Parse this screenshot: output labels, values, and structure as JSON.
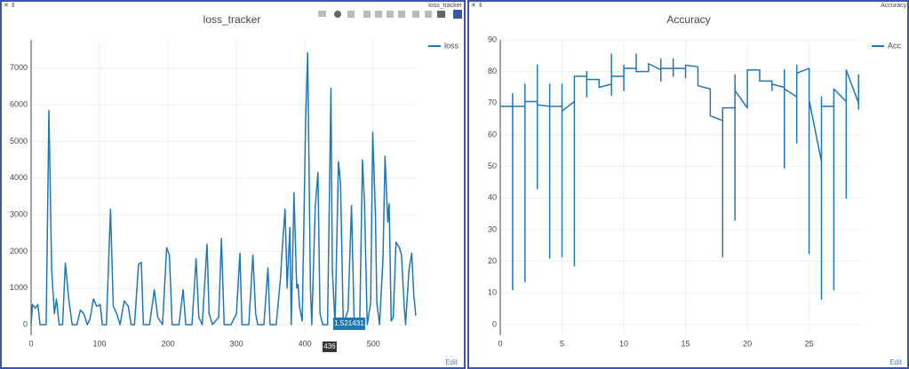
{
  "chart_data": [
    {
      "type": "line",
      "title": "loss_tracker",
      "x": [
        0,
        2,
        6,
        10,
        13,
        22,
        26,
        30,
        34,
        37,
        41,
        46,
        50,
        55,
        60,
        67,
        72,
        77,
        82,
        86,
        91,
        96,
        101,
        104,
        110,
        116,
        120,
        125,
        130,
        136,
        142,
        146,
        151,
        157,
        161,
        164,
        173,
        180,
        185,
        192,
        198,
        202,
        206,
        216,
        222,
        226,
        235,
        241,
        245,
        250,
        257,
        260,
        265,
        274,
        278,
        282,
        292,
        300,
        305,
        308,
        318,
        324,
        328,
        331,
        340,
        346,
        349,
        358,
        364,
        367,
        371,
        374,
        378,
        380,
        384,
        388,
        390,
        392,
        396,
        401,
        404,
        408,
        410,
        415,
        419,
        422,
        426,
        433,
        438,
        440,
        444,
        449,
        452,
        456,
        463,
        468,
        472,
        480,
        484,
        487,
        491,
        496,
        499,
        503,
        505,
        509,
        514,
        517,
        521,
        523,
        526,
        529,
        533,
        538,
        541,
        545,
        547,
        552,
        556,
        559,
        562
      ],
      "series": [
        {
          "name": "loss",
          "color": "#1f77b4",
          "values": [
            0,
            550,
            450,
            550,
            0,
            0,
            5850,
            1500,
            300,
            700,
            0,
            0,
            1680,
            700,
            0,
            0,
            400,
            300,
            0,
            150,
            700,
            500,
            550,
            0,
            0,
            3150,
            500,
            300,
            0,
            650,
            500,
            0,
            0,
            1650,
            1700,
            0,
            0,
            950,
            200,
            0,
            2100,
            1900,
            0,
            0,
            950,
            0,
            0,
            1800,
            200,
            0,
            2200,
            300,
            0,
            200,
            2350,
            0,
            0,
            300,
            1950,
            0,
            0,
            1900,
            300,
            0,
            0,
            1550,
            0,
            0,
            1200,
            2100,
            3150,
            1000,
            2650,
            0,
            3600,
            1000,
            1100,
            500,
            100,
            5600,
            7420,
            1000,
            0,
            3200,
            4150,
            300,
            0,
            0,
            6450,
            1500,
            0,
            4450,
            3850,
            0,
            400,
            3250,
            0,
            0,
            4500,
            3300,
            0,
            600,
            5250,
            3000,
            600,
            0,
            1800,
            4600,
            2800,
            3300,
            100,
            200,
            2250,
            2100,
            1900,
            500,
            0,
            1500,
            1950,
            800,
            250
          ]
        }
      ],
      "xlim": [
        0,
        562
      ],
      "xticks": [
        0,
        100,
        200,
        300,
        400,
        500
      ],
      "ylim": [
        -290,
        7770
      ],
      "yticks": [
        0,
        1000,
        2000,
        3000,
        4000,
        5000,
        6000,
        7000
      ],
      "grid": true,
      "legend": "top-right",
      "hover": {
        "value_label": "1.521431",
        "x_label": "436"
      }
    },
    {
      "type": "line",
      "title": "Accuracy",
      "x": [
        0,
        1,
        1,
        1,
        1,
        2,
        2,
        2,
        2,
        3,
        3,
        3,
        3,
        4,
        4,
        4,
        4,
        5,
        5,
        5,
        5,
        6,
        6,
        6,
        7,
        7,
        7,
        7,
        8,
        8,
        9,
        9,
        9,
        9,
        10,
        10,
        10,
        10,
        11,
        11,
        11,
        12,
        12,
        13,
        13,
        13,
        13,
        14,
        14,
        14,
        14,
        15,
        15,
        15,
        16,
        16,
        17,
        17,
        18,
        18,
        18,
        19,
        19,
        19,
        19,
        20,
        20,
        20,
        21,
        21,
        22,
        22,
        22,
        23,
        23,
        23,
        23,
        24,
        24,
        24,
        24,
        25,
        25,
        25,
        26,
        26,
        26,
        26,
        27,
        27,
        27,
        28,
        28,
        28,
        29,
        29,
        29
      ],
      "series": [
        {
          "name": "Acc",
          "color": "#1f77b4",
          "values": [
            69,
            69,
            11,
            73,
            69,
            69,
            13.5,
            76,
            70.5,
            70.5,
            43,
            82,
            69.5,
            69,
            21,
            76,
            69,
            69,
            21.5,
            76,
            67.5,
            70.5,
            18.5,
            78.5,
            78.5,
            72,
            80,
            77.5,
            77.5,
            75,
            76,
            72.5,
            85.5,
            78.5,
            78.5,
            74,
            82,
            81,
            81,
            85.5,
            80,
            80,
            82.5,
            80.5,
            77,
            84,
            81,
            81,
            78.5,
            84,
            81,
            81,
            78,
            82,
            81.5,
            75.5,
            74.5,
            66,
            64.5,
            21.5,
            68.5,
            68.5,
            33,
            79,
            74,
            68.5,
            80,
            80.5,
            80.5,
            77,
            77,
            74,
            76,
            75,
            49.5,
            80.5,
            74.5,
            72,
            57.5,
            82,
            79.5,
            81,
            22.5,
            71,
            51.5,
            8,
            72,
            69,
            69,
            11,
            74.5,
            70.5,
            40,
            80.5,
            70,
            79,
            68
          ]
        }
      ],
      "xlim": [
        0,
        29.2
      ],
      "xticks": [
        0,
        5,
        10,
        15,
        20,
        25
      ],
      "ylim": [
        -3.4,
        90
      ],
      "yticks": [
        0,
        10,
        20,
        30,
        40,
        50,
        60,
        70,
        80,
        90
      ],
      "grid": true,
      "legend": "top-right"
    }
  ],
  "panels": [
    {
      "tab": "loss_tracker",
      "edit": "Edit"
    },
    {
      "tab": "Accuracy",
      "edit": "Edit"
    }
  ]
}
